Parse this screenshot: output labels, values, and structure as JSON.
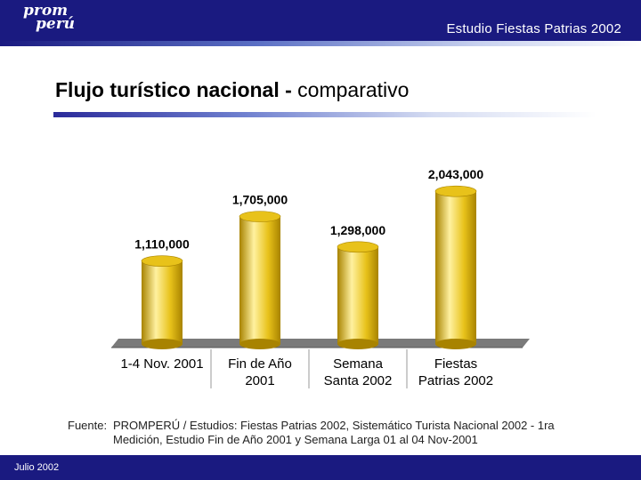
{
  "logo": {
    "line1": "prom",
    "line2": "perú"
  },
  "header": {
    "title": "Estudio Fiestas Patrias 2002"
  },
  "slide": {
    "title_bold": "Flujo turístico nacional -",
    "title_rest": " comparativo"
  },
  "chart_data": {
    "type": "bar",
    "categories": [
      [
        "1-4 Nov. 2001"
      ],
      [
        "Fin de Año",
        "2001"
      ],
      [
        "Semana",
        "Santa 2002"
      ],
      [
        "Fiestas",
        "Patrias 2002"
      ]
    ],
    "values": [
      1110000,
      1705000,
      1298000,
      2043000
    ],
    "data_labels": [
      "1,110,000",
      "1,705,000",
      "1,298,000",
      "2,043,000"
    ],
    "ylim": [
      0,
      2200000
    ],
    "colors": {
      "bar": "#e8c21a",
      "bar_light": "#fff1a0",
      "bar_dark": "#a88300",
      "floor": "#7a7a7a"
    }
  },
  "source": {
    "prefix": "Fuente:",
    "line1": "PROMPERÚ / Estudios: Fiestas Patrias 2002, Sistemático Turista Nacional 2002 - 1ra",
    "line2": "Medición, Estudio Fin de Año 2001 y Semana Larga 01 al 04 Nov-2001"
  },
  "footer": {
    "date": "Julio 2002"
  }
}
